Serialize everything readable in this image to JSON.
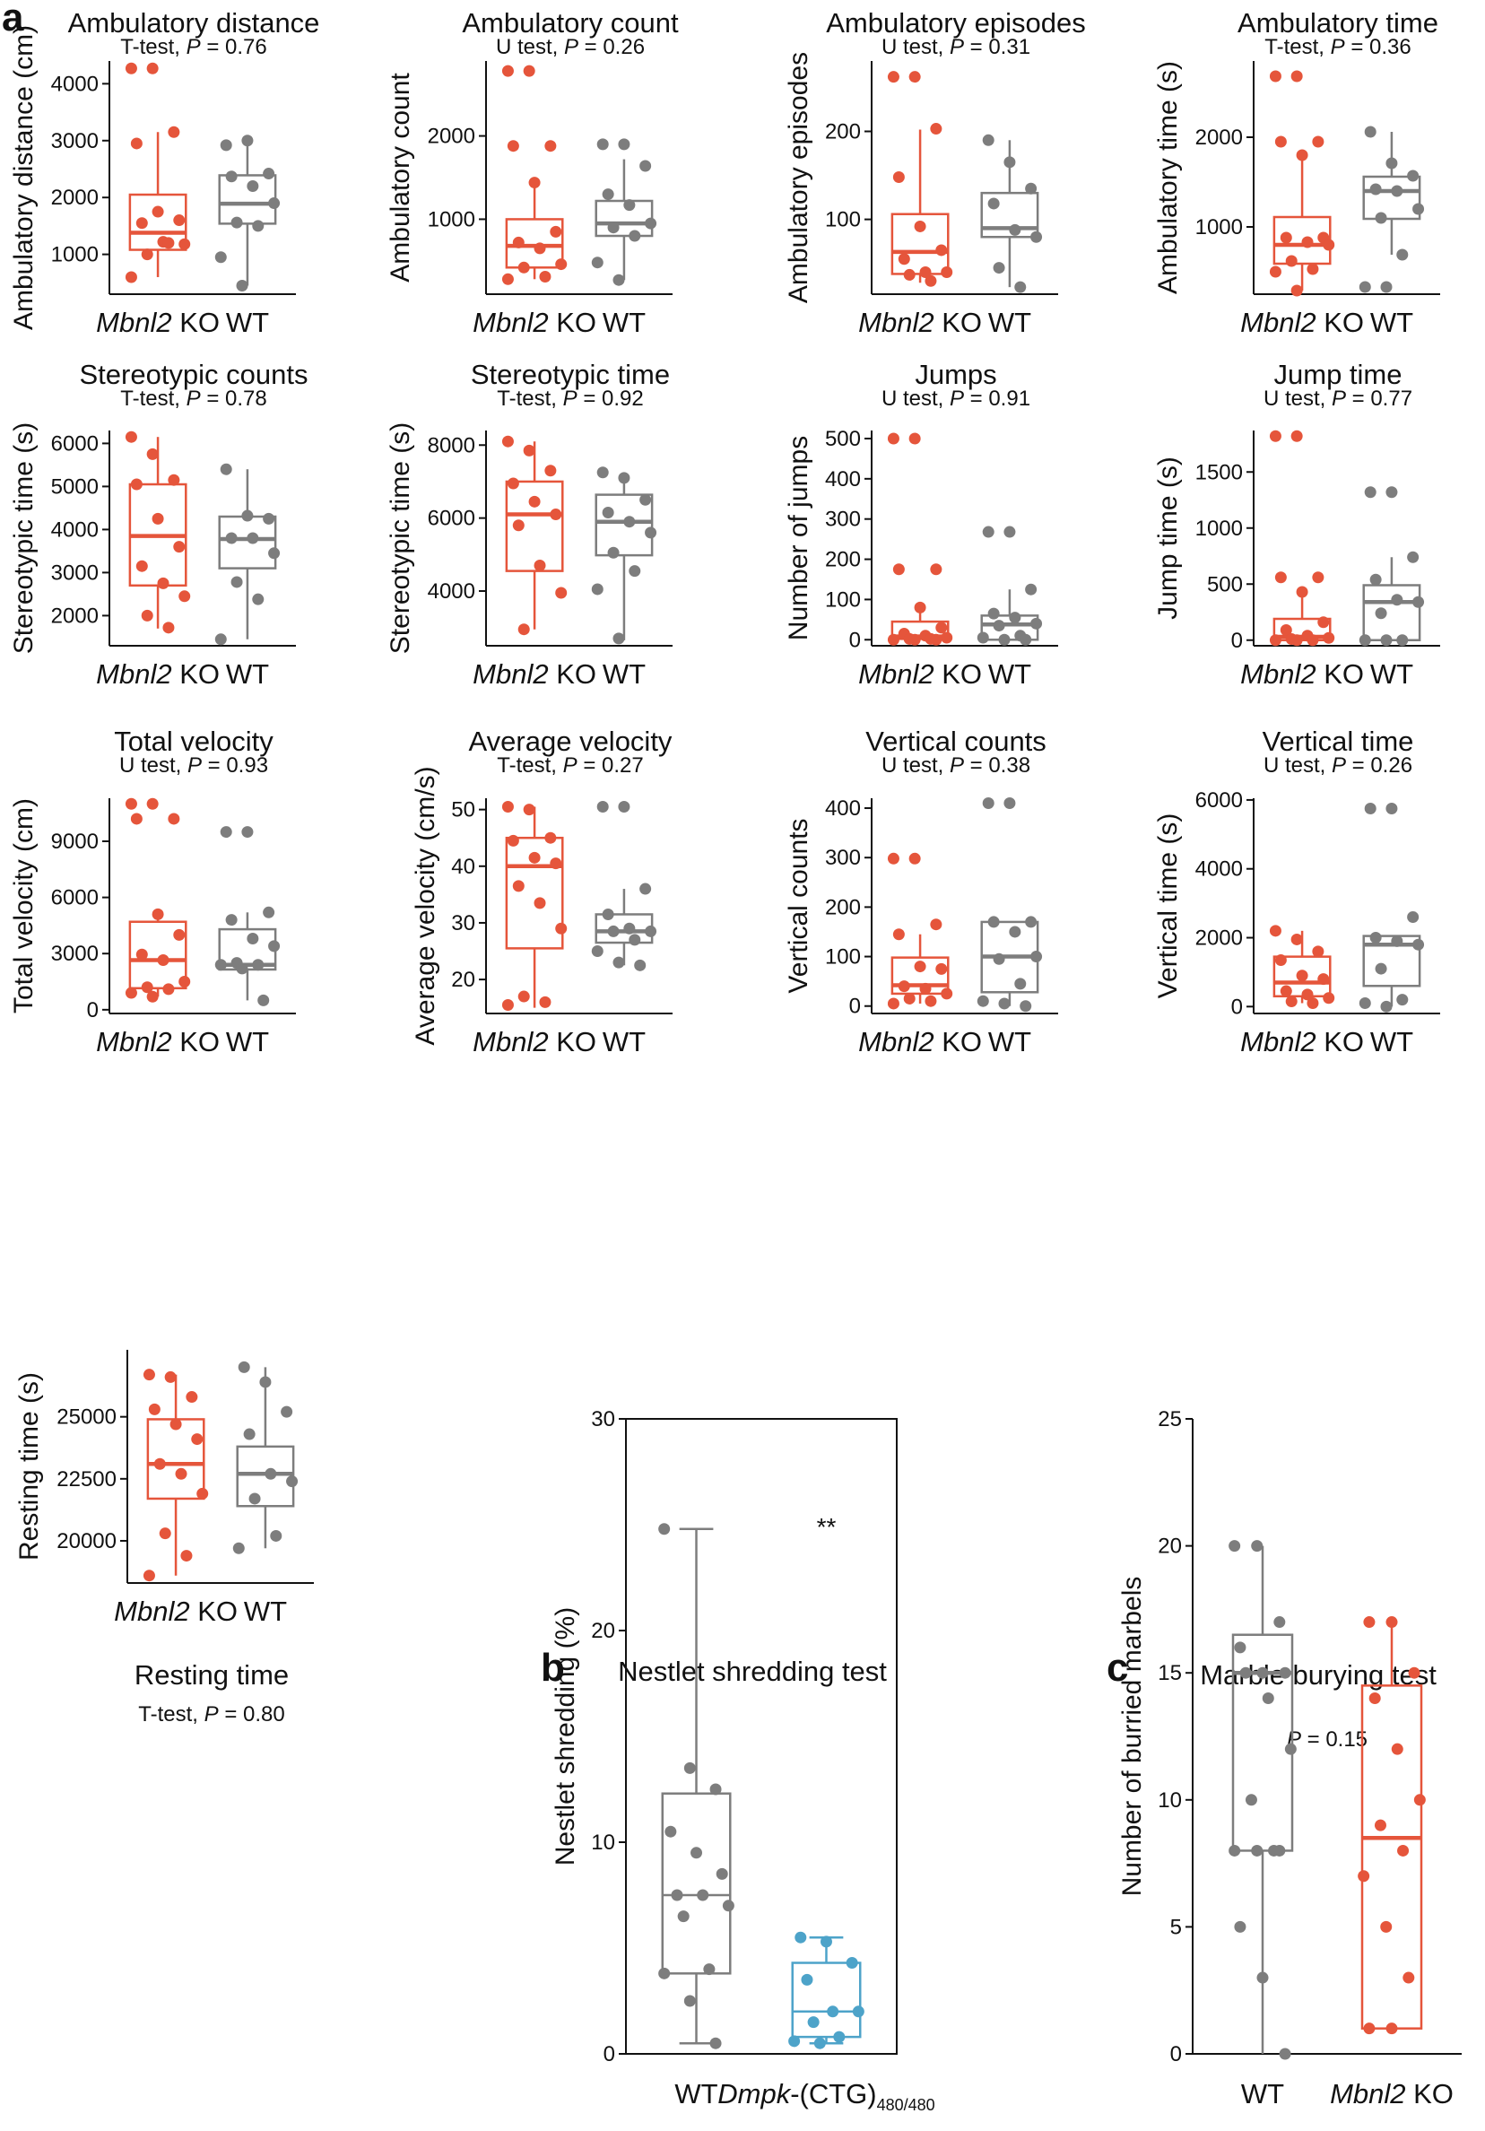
{
  "panel_letters": {
    "a": "a",
    "b": "b",
    "c": "c"
  },
  "colors": {
    "ko": "#e5553b",
    "wt": "#7d7d7d",
    "dmpk": "#4da3c9"
  },
  "groups": {
    "ko": "Mbnl2",
    "ko_suffix": " KO",
    "wt": "WT",
    "dmpk": "Dmpk",
    "dmpk_mid": "-(CTG)",
    "dmpk_sub": "480/480"
  },
  "chart_data": [
    {
      "id": "ambulatory-distance",
      "type": "box",
      "title": "Ambulatory distance",
      "test": "T-test",
      "p_label": "P",
      "p_value": "= 0.76",
      "ylabel": "Ambulatory distance (cm)",
      "ylim": [
        300,
        4400
      ],
      "yticks": [
        1000,
        2000,
        3000,
        4000
      ],
      "categories": [
        "Mbnl2 KO",
        "WT"
      ],
      "boxes": [
        {
          "group": "ko",
          "min": 600,
          "q1": 1080,
          "median": 1380,
          "q3": 2050,
          "max": 3150,
          "points": [
            4270,
            4270,
            3150,
            2950,
            1750,
            1600,
            1550,
            1220,
            1180,
            1000,
            1200,
            600
          ]
        },
        {
          "group": "wt",
          "min": 450,
          "q1": 1540,
          "median": 1890,
          "q3": 2390,
          "max": 3000,
          "points": [
            2920,
            3000,
            2420,
            2370,
            2200,
            1900,
            1560,
            1500,
            950,
            450
          ]
        }
      ]
    },
    {
      "id": "ambulatory-count",
      "type": "box",
      "title": "Ambulatory count",
      "test": "U test",
      "p_label": "P",
      "p_value": "= 0.26",
      "ylabel": "Ambulatory count",
      "ylim": [
        100,
        2900
      ],
      "yticks": [
        1000,
        2000
      ],
      "categories": [
        "Mbnl2 KO",
        "WT"
      ],
      "boxes": [
        {
          "group": "ko",
          "min": 280,
          "q1": 420,
          "median": 680,
          "q3": 1000,
          "max": 1420,
          "points": [
            2780,
            2780,
            1880,
            1880,
            1440,
            850,
            720,
            650,
            460,
            420,
            310,
            280
          ]
        },
        {
          "group": "wt",
          "min": 270,
          "q1": 800,
          "median": 950,
          "q3": 1220,
          "max": 1720,
          "points": [
            1900,
            1900,
            1640,
            1300,
            1170,
            950,
            900,
            800,
            480,
            270
          ]
        }
      ]
    },
    {
      "id": "ambulatory-episodes",
      "type": "box",
      "title": "Ambulatory episodes",
      "test": "U test",
      "p_label": "P",
      "p_value": "= 0.31",
      "ylabel": "Ambulatory episodes",
      "ylim": [
        15,
        280
      ],
      "yticks": [
        100,
        200
      ],
      "categories": [
        "Mbnl2 KO",
        "WT"
      ],
      "boxes": [
        {
          "group": "ko",
          "min": 28,
          "q1": 38,
          "median": 63,
          "q3": 106,
          "max": 202,
          "points": [
            262,
            262,
            203,
            148,
            92,
            65,
            55,
            40,
            40,
            37,
            30
          ]
        },
        {
          "group": "wt",
          "min": 23,
          "q1": 80,
          "median": 90,
          "q3": 130,
          "max": 190,
          "points": [
            190,
            165,
            135,
            118,
            88,
            80,
            45,
            23
          ]
        }
      ]
    },
    {
      "id": "ambulatory-time",
      "type": "box",
      "title": "Ambulatory time",
      "test": "T-test",
      "p_label": "P",
      "p_value": "= 0.36",
      "ylabel": "Ambulatory time (s)",
      "ylim": [
        250,
        2850
      ],
      "yticks": [
        1000,
        2000
      ],
      "categories": [
        "Mbnl2 KO",
        "WT"
      ],
      "boxes": [
        {
          "group": "ko",
          "min": 290,
          "q1": 590,
          "median": 800,
          "q3": 1110,
          "max": 1790,
          "points": [
            2680,
            2680,
            1950,
            1950,
            1800,
            880,
            880,
            830,
            800,
            620,
            530,
            500,
            290
          ]
        },
        {
          "group": "wt",
          "min": 690,
          "q1": 1090,
          "median": 1400,
          "q3": 1560,
          "max": 2060,
          "points": [
            2060,
            1710,
            1570,
            1420,
            1400,
            1200,
            1100,
            690,
            330,
            330
          ]
        }
      ]
    },
    {
      "id": "stereotypic-counts",
      "type": "box",
      "title": "Stereotypic counts",
      "test": "T-test",
      "p_label": "P",
      "p_value": "= 0.78",
      "ylabel": "Stereotypic time (s)",
      "ylim": [
        1300,
        6300
      ],
      "yticks": [
        2000,
        3000,
        4000,
        5000,
        6000
      ],
      "categories": [
        "Mbnl2 KO",
        "WT"
      ],
      "boxes": [
        {
          "group": "ko",
          "min": 1700,
          "q1": 2700,
          "median": 3850,
          "q3": 5050,
          "max": 6150,
          "points": [
            6150,
            5750,
            5150,
            5050,
            4250,
            3600,
            3150,
            2750,
            2450,
            2000,
            1720
          ]
        },
        {
          "group": "wt",
          "min": 1450,
          "q1": 3100,
          "median": 3780,
          "q3": 4300,
          "max": 5400,
          "points": [
            5400,
            4320,
            4250,
            3800,
            3800,
            3450,
            2780,
            2380,
            1450
          ]
        }
      ]
    },
    {
      "id": "stereotypic-time",
      "type": "box",
      "title": "Stereotypic time",
      "test": "T-test",
      "p_label": "P",
      "p_value": "= 0.92",
      "ylabel": "Stereotypic time (s)",
      "ylim": [
        2500,
        8400
      ],
      "yticks": [
        4000,
        6000,
        8000
      ],
      "categories": [
        "Mbnl2 KO",
        "WT"
      ],
      "boxes": [
        {
          "group": "ko",
          "min": 2950,
          "q1": 4550,
          "median": 6100,
          "q3": 7000,
          "max": 8100,
          "points": [
            8100,
            7850,
            7300,
            6950,
            6450,
            6100,
            5800,
            4700,
            3950,
            2950
          ]
        },
        {
          "group": "wt",
          "min": 2650,
          "q1": 4980,
          "median": 5900,
          "q3": 6640,
          "max": 7250,
          "points": [
            7250,
            7100,
            6500,
            6150,
            5900,
            5600,
            5050,
            4550,
            4050,
            2700
          ]
        }
      ]
    },
    {
      "id": "jumps",
      "type": "box",
      "title": "Jumps",
      "test": "U test",
      "p_label": "P",
      "p_value": "= 0.91",
      "ylabel": "Number of jumps",
      "ylim": [
        -15,
        520
      ],
      "yticks": [
        0,
        100,
        200,
        300,
        400,
        500
      ],
      "categories": [
        "Mbnl2 KO",
        "WT"
      ],
      "boxes": [
        {
          "group": "ko",
          "min": 0,
          "q1": 2,
          "median": 8,
          "q3": 45,
          "max": 80,
          "points": [
            500,
            500,
            175,
            175,
            80,
            30,
            15,
            10,
            5,
            2,
            2,
            0,
            0,
            0
          ]
        },
        {
          "group": "wt",
          "min": 0,
          "q1": 0,
          "median": 38,
          "q3": 60,
          "max": 125,
          "points": [
            268,
            268,
            125,
            65,
            55,
            40,
            35,
            10,
            5,
            0,
            0
          ]
        }
      ]
    },
    {
      "id": "jump-time",
      "type": "box",
      "title": "Jump time",
      "test": "U test",
      "p_label": "P",
      "p_value": "= 0.77",
      "ylabel": "Jump time (s)",
      "ylim": [
        -50,
        1870
      ],
      "yticks": [
        0,
        500,
        1000,
        1500
      ],
      "categories": [
        "Mbnl2 KO",
        "WT"
      ],
      "boxes": [
        {
          "group": "ko",
          "min": 0,
          "q1": 0,
          "median": 30,
          "q3": 190,
          "max": 420,
          "points": [
            1820,
            1820,
            560,
            560,
            430,
            160,
            90,
            40,
            20,
            10,
            0,
            0,
            0
          ]
        },
        {
          "group": "wt",
          "min": 0,
          "q1": 0,
          "median": 340,
          "q3": 490,
          "max": 740,
          "points": [
            1320,
            1320,
            740,
            540,
            360,
            340,
            240,
            0,
            0,
            0
          ]
        }
      ]
    },
    {
      "id": "total-velocity",
      "type": "box",
      "title": "Total velocity",
      "test": "U test",
      "p_label": "P",
      "p_value": "= 0.93",
      "ylabel": "Total velocity (cm)",
      "ylim": [
        -200,
        11300
      ],
      "yticks": [
        0,
        3000,
        6000,
        9000
      ],
      "categories": [
        "Mbnl2 KO",
        "WT"
      ],
      "boxes": [
        {
          "group": "ko",
          "min": 700,
          "q1": 1150,
          "median": 2650,
          "q3": 4700,
          "max": 5100,
          "points": [
            11000,
            11000,
            10200,
            10200,
            5100,
            4000,
            2950,
            2650,
            1500,
            1200,
            1100,
            900,
            700
          ]
        },
        {
          "group": "wt",
          "min": 500,
          "q1": 2150,
          "median": 2400,
          "q3": 4300,
          "max": 5200,
          "points": [
            9500,
            9500,
            5200,
            4800,
            3800,
            3400,
            2500,
            2400,
            2400,
            2200,
            500
          ]
        }
      ]
    },
    {
      "id": "average-velocity",
      "type": "box",
      "title": "Average velocity",
      "test": "T-test",
      "p_label": "P",
      "p_value": "= 0.27",
      "ylabel": "Average velocity (cm/s)",
      "ylim": [
        14,
        52
      ],
      "yticks": [
        20,
        30,
        40,
        50
      ],
      "categories": [
        "Mbnl2 KO",
        "WT"
      ],
      "boxes": [
        {
          "group": "ko",
          "min": 15,
          "q1": 25.5,
          "median": 40,
          "q3": 45,
          "max": 50.5,
          "points": [
            50.5,
            50,
            45,
            44.5,
            41.5,
            40.5,
            36.5,
            33.5,
            29,
            17,
            16,
            15.5
          ]
        },
        {
          "group": "wt",
          "min": 22.5,
          "q1": 26.5,
          "median": 28.5,
          "q3": 31.5,
          "max": 36,
          "points": [
            50.5,
            50.5,
            36,
            31.5,
            29,
            28.5,
            28.5,
            27,
            25,
            23,
            22.5
          ]
        }
      ]
    },
    {
      "id": "vertical-counts",
      "type": "box",
      "title": "Vertical counts",
      "test": "U test",
      "p_label": "P",
      "p_value": "= 0.38",
      "ylabel": "Vertical counts",
      "ylim": [
        -15,
        420
      ],
      "yticks": [
        0,
        100,
        200,
        300,
        400
      ],
      "categories": [
        "Mbnl2 KO",
        "WT"
      ],
      "boxes": [
        {
          "group": "ko",
          "min": 5,
          "q1": 25,
          "median": 42,
          "q3": 98,
          "max": 145,
          "points": [
            298,
            298,
            165,
            145,
            80,
            75,
            40,
            35,
            25,
            15,
            10,
            5
          ]
        },
        {
          "group": "wt",
          "min": 0,
          "q1": 28,
          "median": 100,
          "q3": 170,
          "max": 170,
          "points": [
            410,
            410,
            170,
            170,
            150,
            100,
            95,
            45,
            10,
            5,
            0
          ]
        }
      ]
    },
    {
      "id": "vertical-time",
      "type": "box",
      "title": "Vertical time",
      "test": "U test",
      "p_label": "P",
      "p_value": "= 0.26",
      "ylabel": "Vertical time (s)",
      "ylim": [
        -200,
        6050
      ],
      "yticks": [
        0,
        2000,
        4000,
        6000
      ],
      "categories": [
        "Mbnl2 KO",
        "WT"
      ],
      "boxes": [
        {
          "group": "ko",
          "min": 100,
          "q1": 300,
          "median": 700,
          "q3": 1450,
          "max": 2200,
          "points": [
            2200,
            1950,
            1600,
            1350,
            900,
            800,
            450,
            350,
            250,
            150,
            100
          ]
        },
        {
          "group": "wt",
          "min": 0,
          "q1": 600,
          "median": 1800,
          "q3": 2050,
          "max": 2050,
          "points": [
            5750,
            5750,
            2600,
            2000,
            1900,
            1800,
            1100,
            200,
            100,
            0
          ]
        }
      ]
    },
    {
      "id": "resting-time",
      "type": "box",
      "title": "Resting time",
      "test": "T-test",
      "p_label": "P",
      "p_value": "= 0.80",
      "ylabel": "Resting time (s)",
      "ylim": [
        18300,
        27700
      ],
      "yticks": [
        20000,
        22500,
        25000
      ],
      "categories": [
        "Mbnl2 KO",
        "WT"
      ],
      "boxes": [
        {
          "group": "ko",
          "min": 18600,
          "q1": 21700,
          "median": 23100,
          "q3": 24900,
          "max": 26700,
          "points": [
            26700,
            26600,
            25800,
            25300,
            24700,
            24100,
            23100,
            22700,
            21900,
            20300,
            19400,
            18600
          ]
        },
        {
          "group": "wt",
          "min": 19700,
          "q1": 21400,
          "median": 22700,
          "q3": 23800,
          "max": 27000,
          "points": [
            27000,
            26400,
            25200,
            24300,
            22700,
            22400,
            21700,
            20200,
            19700
          ]
        }
      ]
    },
    {
      "id": "nestlet-shredding",
      "type": "box",
      "title": "Nestlet shredding test",
      "ylabel": "Nestlet shredding (%)",
      "ylim": [
        0,
        30
      ],
      "yticks": [
        0,
        10,
        20,
        30
      ],
      "categories": [
        "WT",
        "Dmpk-(CTG)480/480"
      ],
      "significance": "**",
      "boxes": [
        {
          "group": "wt",
          "min": 0.5,
          "q1": 3.8,
          "median": 7.5,
          "q3": 12.3,
          "max": 24.8,
          "points": [
            24.8,
            13.5,
            12.5,
            10.5,
            9.5,
            8.5,
            7.5,
            7.5,
            7.0,
            6.5,
            4.0,
            3.8,
            2.5,
            0.5
          ]
        },
        {
          "group": "dmpk",
          "min": 0.5,
          "q1": 0.8,
          "median": 2.0,
          "q3": 4.3,
          "max": 5.5,
          "points": [
            5.5,
            5.3,
            4.3,
            3.5,
            2.0,
            2.0,
            1.5,
            0.8,
            0.6,
            0.5
          ]
        }
      ]
    },
    {
      "id": "marble-burying",
      "type": "box",
      "title": "Marble burying test",
      "ylabel": "Number of burried marbels",
      "ylim": [
        0,
        25
      ],
      "yticks": [
        0,
        5,
        10,
        15,
        20,
        25
      ],
      "categories": [
        "WT",
        "Mbnl2 KO"
      ],
      "p_label": "P",
      "p_value": "= 0.15",
      "boxes": [
        {
          "group": "wt",
          "min": 0,
          "q1": 8,
          "median": 15,
          "q3": 16.5,
          "max": 20,
          "points": [
            20,
            20,
            17,
            16,
            15,
            15,
            15,
            14,
            12,
            10,
            8,
            8,
            8,
            8,
            5,
            3,
            0
          ]
        },
        {
          "group": "ko",
          "min": 1,
          "q1": 1,
          "median": 8.5,
          "q3": 14.5,
          "max": 17,
          "points": [
            17,
            17,
            15,
            14,
            12,
            10,
            9,
            8,
            7,
            5,
            3,
            1,
            1
          ]
        }
      ]
    }
  ]
}
